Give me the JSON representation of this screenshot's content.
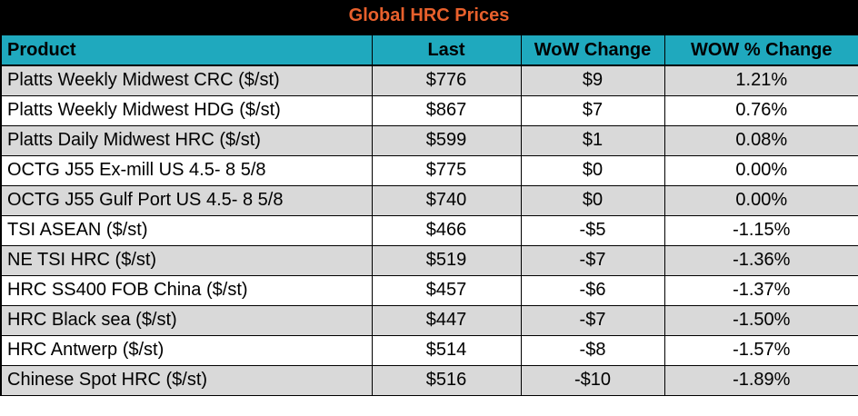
{
  "title": "Global HRC Prices",
  "columns": [
    "Product",
    "Last",
    "WoW Change",
    "WOW % Change"
  ],
  "rows": [
    {
      "product": "Platts Weekly Midwest CRC ($/st)",
      "last": "$776",
      "wow": "$9",
      "wow_pct": "1.21%"
    },
    {
      "product": "Platts Weekly Midwest HDG ($/st)",
      "last": "$867",
      "wow": "$7",
      "wow_pct": "0.76%"
    },
    {
      "product": "Platts Daily Midwest HRC ($/st)",
      "last": "$599",
      "wow": "$1",
      "wow_pct": "0.08%"
    },
    {
      "product": "OCTG J55 Ex-mill US 4.5- 8 5/8",
      "last": "$775",
      "wow": "$0",
      "wow_pct": "0.00%"
    },
    {
      "product": "OCTG J55 Gulf Port US 4.5- 8 5/8",
      "last": "$740",
      "wow": "$0",
      "wow_pct": "0.00%"
    },
    {
      "product": "TSI ASEAN ($/st)",
      "last": "$466",
      "wow": "-$5",
      "wow_pct": "-1.15%"
    },
    {
      "product": "NE TSI HRC ($/st)",
      "last": "$519",
      "wow": "-$7",
      "wow_pct": "-1.36%"
    },
    {
      "product": "HRC SS400 FOB China ($/st)",
      "last": "$457",
      "wow": "-$6",
      "wow_pct": "-1.37%"
    },
    {
      "product": "HRC Black sea ($/st)",
      "last": "$447",
      "wow": "-$7",
      "wow_pct": "-1.50%"
    },
    {
      "product": "HRC Antwerp ($/st)",
      "last": "$514",
      "wow": "-$8",
      "wow_pct": "-1.57%"
    },
    {
      "product": "Chinese Spot HRC ($/st)",
      "last": "$516",
      "wow": "-$10",
      "wow_pct": "-1.89%"
    }
  ],
  "colors": {
    "title_bg": "#000000",
    "title_text": "#e8602c",
    "header_bg": "#1fa9be",
    "row_shaded": "#d9d9d9",
    "row_plain": "#ffffff"
  }
}
